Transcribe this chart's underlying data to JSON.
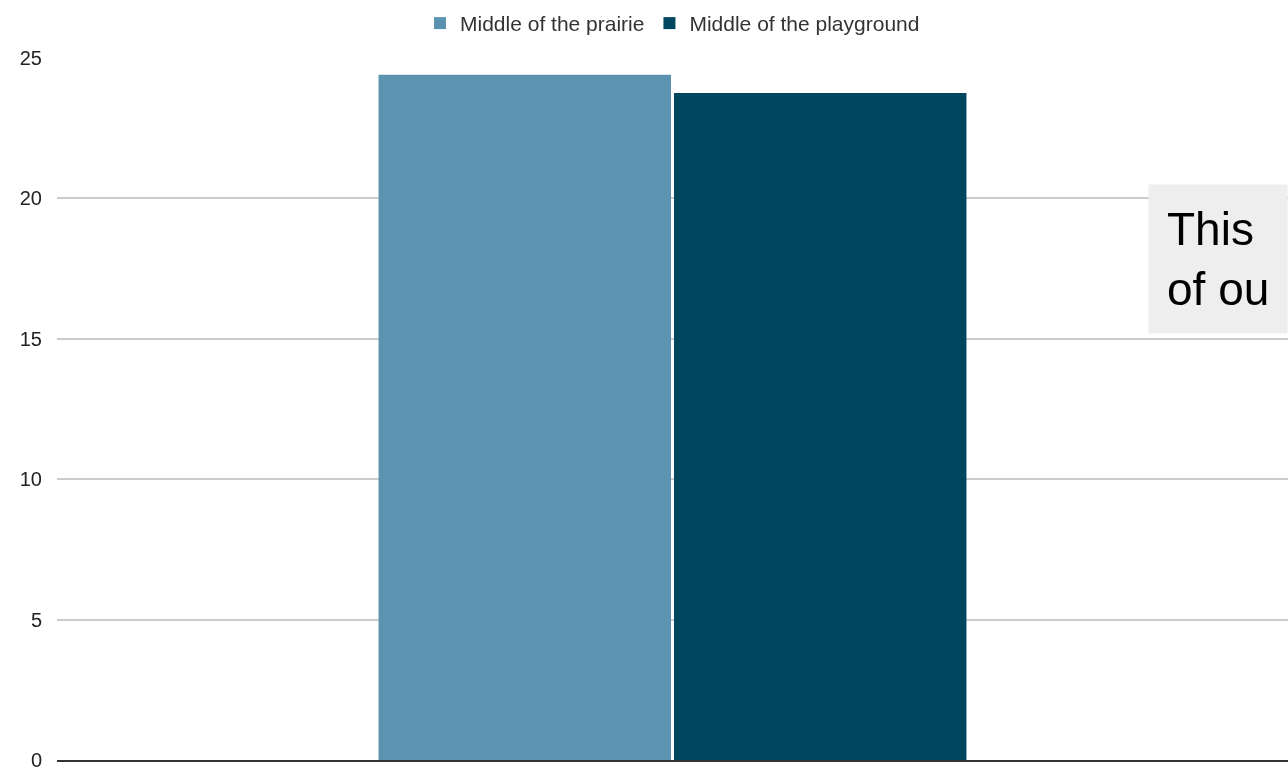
{
  "chart_data": {
    "type": "bar",
    "categories": [
      null
    ],
    "series": [
      {
        "name": "Middle of the prairie",
        "color": "#5b93b0",
        "values": [
          24.4
        ]
      },
      {
        "name": "Middle of the playground",
        "color": "#01465f",
        "values": [
          23.75
        ]
      }
    ],
    "ylim": [
      0,
      25
    ],
    "yticks": [
      0,
      5,
      10,
      15,
      20,
      25
    ],
    "grid": "y",
    "legend": "top",
    "annotations": [
      "This\nof ou"
    ]
  }
}
